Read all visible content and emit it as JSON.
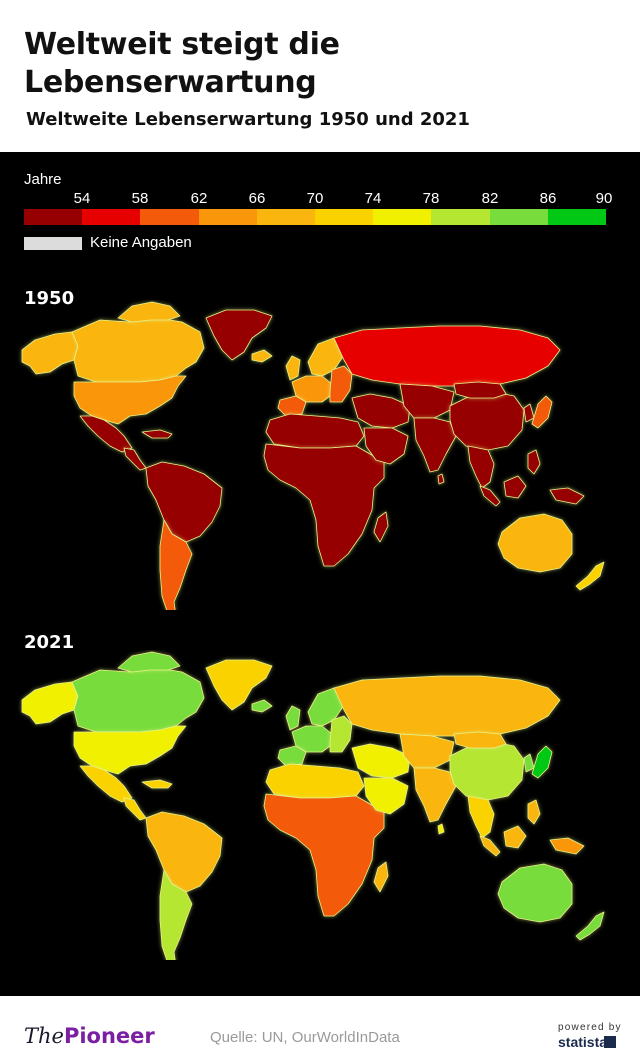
{
  "header": {
    "title": "Weltweit steigt die Lebenserwartung",
    "subtitle": "Weltweite Lebenserwartung 1950 und 2021"
  },
  "legend": {
    "title": "Jahre",
    "ticks": [
      "54",
      "58",
      "62",
      "66",
      "70",
      "74",
      "78",
      "82",
      "86",
      "90"
    ],
    "colors": [
      "#960000",
      "#e60000",
      "#f35a0a",
      "#fa960a",
      "#fab50f",
      "#fad200",
      "#f0f000",
      "#b4e632",
      "#78dc3c",
      "#00c814"
    ],
    "no_data_label": "Keine Angaben",
    "no_data_color": "#dcdcdc"
  },
  "maps": [
    {
      "label": "1950",
      "regions": [
        {
          "name": "alaska",
          "color": "#fab50f"
        },
        {
          "name": "canada",
          "color": "#fab50f"
        },
        {
          "name": "arctic-islands",
          "color": "#fab50f"
        },
        {
          "name": "greenland",
          "color": "#960000"
        },
        {
          "name": "usa",
          "color": "#fa960a"
        },
        {
          "name": "mexico",
          "color": "#960000"
        },
        {
          "name": "central-america",
          "color": "#960000"
        },
        {
          "name": "caribbean",
          "color": "#960000"
        },
        {
          "name": "south-america-north",
          "color": "#960000"
        },
        {
          "name": "south-america-south",
          "color": "#f35a0a"
        },
        {
          "name": "iceland",
          "color": "#fab50f"
        },
        {
          "name": "britain",
          "color": "#fab50f"
        },
        {
          "name": "scandinavia",
          "color": "#fab50f"
        },
        {
          "name": "europe-west",
          "color": "#fa960a"
        },
        {
          "name": "europe-east",
          "color": "#f35a0a"
        },
        {
          "name": "iberia",
          "color": "#f35a0a"
        },
        {
          "name": "russia",
          "color": "#e60000"
        },
        {
          "name": "north-africa",
          "color": "#960000"
        },
        {
          "name": "africa",
          "color": "#960000"
        },
        {
          "name": "madagascar",
          "color": "#960000"
        },
        {
          "name": "middle-east",
          "color": "#960000"
        },
        {
          "name": "arabia",
          "color": "#960000"
        },
        {
          "name": "central-asia",
          "color": "#960000"
        },
        {
          "name": "india",
          "color": "#960000"
        },
        {
          "name": "china",
          "color": "#960000"
        },
        {
          "name": "mongolia",
          "color": "#960000"
        },
        {
          "name": "korea",
          "color": "#960000"
        },
        {
          "name": "japan",
          "color": "#f35a0a"
        },
        {
          "name": "southeast-asia",
          "color": "#960000"
        },
        {
          "name": "sri-lanka",
          "color": "#960000"
        },
        {
          "name": "indonesia-borneo",
          "color": "#960000"
        },
        {
          "name": "indonesia-sumatra",
          "color": "#960000"
        },
        {
          "name": "new-guinea",
          "color": "#960000"
        },
        {
          "name": "philippines",
          "color": "#960000"
        },
        {
          "name": "australia",
          "color": "#fab50f"
        },
        {
          "name": "new-zealand",
          "color": "#fad200"
        }
      ]
    },
    {
      "label": "2021",
      "regions": [
        {
          "name": "alaska",
          "color": "#f0f000"
        },
        {
          "name": "canada",
          "color": "#78dc3c"
        },
        {
          "name": "arctic-islands",
          "color": "#78dc3c"
        },
        {
          "name": "greenland",
          "color": "#fad200"
        },
        {
          "name": "usa",
          "color": "#f0f000"
        },
        {
          "name": "mexico",
          "color": "#fad200"
        },
        {
          "name": "central-america",
          "color": "#fad200"
        },
        {
          "name": "caribbean",
          "color": "#fad200"
        },
        {
          "name": "south-america-north",
          "color": "#fab50f"
        },
        {
          "name": "south-america-south",
          "color": "#b4e632"
        },
        {
          "name": "iceland",
          "color": "#78dc3c"
        },
        {
          "name": "britain",
          "color": "#78dc3c"
        },
        {
          "name": "scandinavia",
          "color": "#78dc3c"
        },
        {
          "name": "europe-west",
          "color": "#78dc3c"
        },
        {
          "name": "europe-east",
          "color": "#b4e632"
        },
        {
          "name": "iberia",
          "color": "#78dc3c"
        },
        {
          "name": "russia",
          "color": "#fab50f"
        },
        {
          "name": "north-africa",
          "color": "#fad200"
        },
        {
          "name": "africa",
          "color": "#f35a0a"
        },
        {
          "name": "madagascar",
          "color": "#fab50f"
        },
        {
          "name": "middle-east",
          "color": "#f0f000"
        },
        {
          "name": "arabia",
          "color": "#f0f000"
        },
        {
          "name": "central-asia",
          "color": "#fab50f"
        },
        {
          "name": "india",
          "color": "#fab50f"
        },
        {
          "name": "china",
          "color": "#b4e632"
        },
        {
          "name": "mongolia",
          "color": "#fab50f"
        },
        {
          "name": "korea",
          "color": "#78dc3c"
        },
        {
          "name": "japan",
          "color": "#00c814"
        },
        {
          "name": "southeast-asia",
          "color": "#fad200"
        },
        {
          "name": "sri-lanka",
          "color": "#f0f000"
        },
        {
          "name": "indonesia-borneo",
          "color": "#fab50f"
        },
        {
          "name": "indonesia-sumatra",
          "color": "#fab50f"
        },
        {
          "name": "new-guinea",
          "color": "#fa960a"
        },
        {
          "name": "philippines",
          "color": "#fab50f"
        },
        {
          "name": "australia",
          "color": "#78dc3c"
        },
        {
          "name": "new-zealand",
          "color": "#78dc3c"
        }
      ]
    }
  ],
  "footer": {
    "brand_prefix": "The",
    "brand_name": "Pioneer",
    "source": "Quelle: UN, OurWorldInData",
    "powered_by": "powered by",
    "statista": "statista"
  }
}
